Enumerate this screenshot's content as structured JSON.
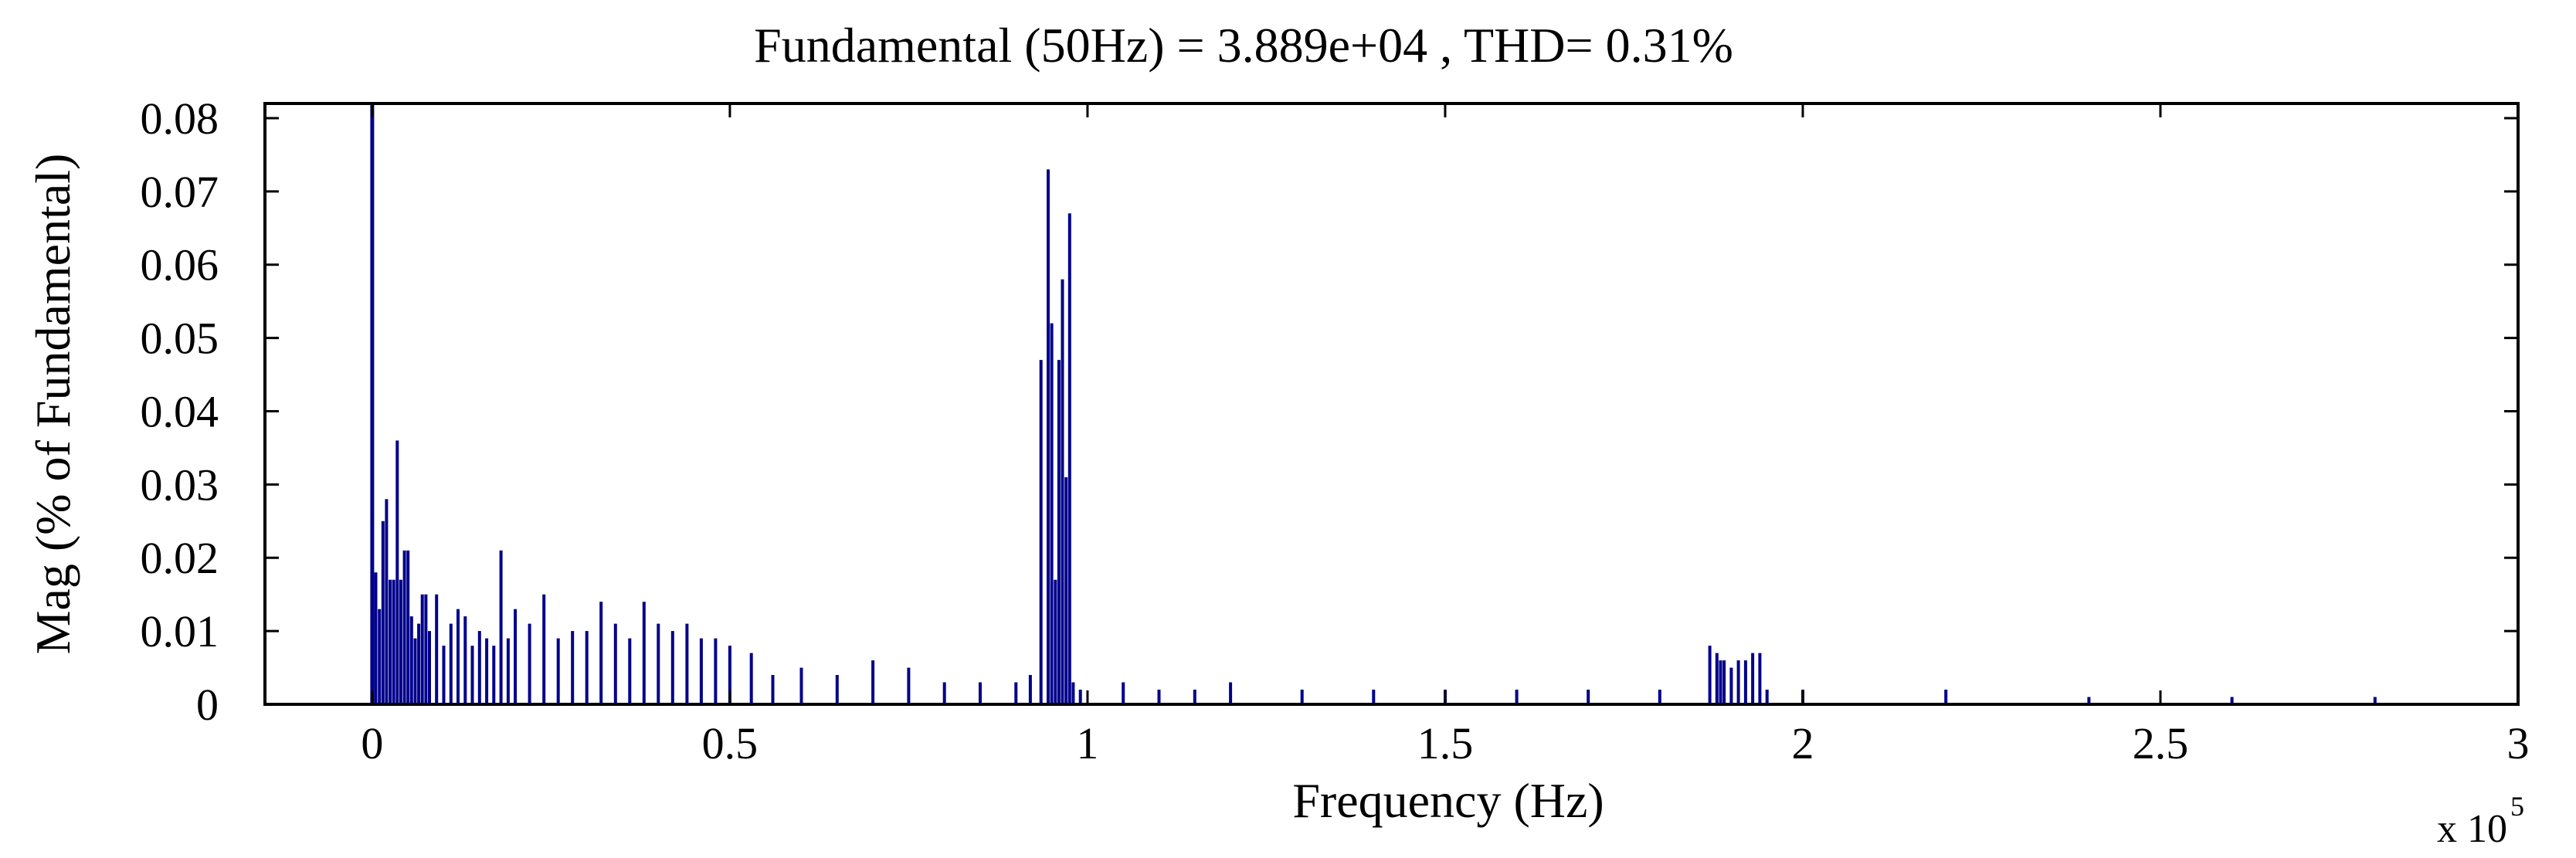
{
  "chart_data": {
    "type": "bar",
    "title": "Fundamental (50Hz) = 3.889e+04 , THD= 0.31%",
    "xlabel": "Frequency (Hz)",
    "ylabel": "Mag (% of Fundamental)",
    "x_multiplier": {
      "base": "x 10",
      "exponent": "5"
    },
    "xlim": [
      -0.15,
      3.0
    ],
    "ylim": [
      0,
      0.082
    ],
    "x_ticks": [
      0,
      0.5,
      1,
      1.5,
      2,
      2.5,
      3
    ],
    "x_tick_labels": [
      "0",
      "0.5",
      "1",
      "1.5",
      "2",
      "2.5",
      "3"
    ],
    "y_ticks": [
      0,
      0.01,
      0.02,
      0.03,
      0.04,
      0.05,
      0.06,
      0.07,
      0.08
    ],
    "y_tick_labels": [
      "0",
      "0.01",
      "0.02",
      "0.03",
      "0.04",
      "0.05",
      "0.06",
      "0.07",
      "0.08"
    ],
    "grid": false,
    "bar_color": "#00008b",
    "series": [
      {
        "x": [
          0.0,
          0.005,
          0.01,
          0.015,
          0.02,
          0.025,
          0.03,
          0.035,
          0.04,
          0.045,
          0.05,
          0.055,
          0.06,
          0.065,
          0.07,
          0.075,
          0.08,
          0.09,
          0.1,
          0.11,
          0.12,
          0.13,
          0.14,
          0.15,
          0.16,
          0.17,
          0.18,
          0.19,
          0.2,
          0.22,
          0.24,
          0.26,
          0.28,
          0.3,
          0.32,
          0.34,
          0.36,
          0.38,
          0.4,
          0.42,
          0.44,
          0.46,
          0.48,
          0.5,
          0.53,
          0.56,
          0.6,
          0.65,
          0.7,
          0.75,
          0.8,
          0.85,
          0.9,
          0.92,
          0.935,
          0.945,
          0.95,
          0.955,
          0.96,
          0.965,
          0.97,
          0.975,
          0.98,
          0.99,
          1.05,
          1.1,
          1.15,
          1.2,
          1.3,
          1.4,
          1.5,
          1.6,
          1.7,
          1.8,
          1.87,
          1.88,
          1.885,
          1.89,
          1.9,
          1.91,
          1.92,
          1.93,
          1.94,
          1.95,
          2.0,
          2.2,
          2.4,
          2.6,
          2.8,
          3.0
        ],
        "values": [
          0.085,
          0.018,
          0.013,
          0.025,
          0.028,
          0.017,
          0.017,
          0.036,
          0.017,
          0.021,
          0.021,
          0.012,
          0.009,
          0.011,
          0.015,
          0.015,
          0.01,
          0.015,
          0.008,
          0.011,
          0.013,
          0.012,
          0.008,
          0.01,
          0.009,
          0.008,
          0.021,
          0.009,
          0.013,
          0.011,
          0.015,
          0.009,
          0.01,
          0.01,
          0.014,
          0.011,
          0.009,
          0.014,
          0.011,
          0.01,
          0.011,
          0.009,
          0.009,
          0.008,
          0.007,
          0.004,
          0.005,
          0.004,
          0.006,
          0.005,
          0.003,
          0.003,
          0.003,
          0.004,
          0.047,
          0.073,
          0.052,
          0.017,
          0.047,
          0.058,
          0.031,
          0.067,
          0.003,
          0.002,
          0.003,
          0.002,
          0.002,
          0.003,
          0.002,
          0.002,
          0.002,
          0.002,
          0.002,
          0.002,
          0.008,
          0.007,
          0.006,
          0.006,
          0.005,
          0.006,
          0.006,
          0.007,
          0.007,
          0.002,
          0.002,
          0.002,
          0.001,
          0.001,
          0.001,
          0.001
        ]
      }
    ]
  }
}
